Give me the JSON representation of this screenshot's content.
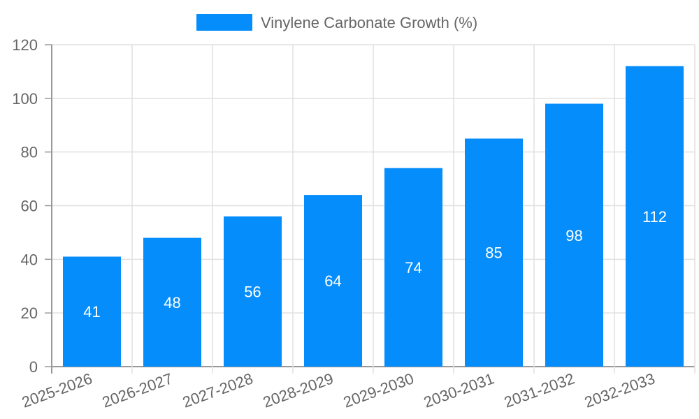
{
  "chart_data": {
    "type": "bar",
    "title": "",
    "legend": [
      {
        "label": "Vinylene Carbonate Growth (%)",
        "color": "#058DFB"
      }
    ],
    "legend_position": "top",
    "categories": [
      "2025-2026",
      "2026-2027",
      "2027-2028",
      "2028-2029",
      "2029-2030",
      "2030-2031",
      "2031-2032",
      "2032-2033"
    ],
    "series": [
      {
        "name": "Vinylene Carbonate Growth (%)",
        "values": [
          41,
          48,
          56,
          64,
          74,
          85,
          98,
          112
        ],
        "color": "#058DFB"
      }
    ],
    "data_labels": [
      "41",
      "48",
      "56",
      "64",
      "74",
      "85",
      "98",
      "112"
    ],
    "xlabel": "",
    "ylabel": "",
    "ylim": [
      0,
      120
    ],
    "yticks": [
      0,
      20,
      40,
      60,
      80,
      100,
      120
    ],
    "grid": true
  }
}
